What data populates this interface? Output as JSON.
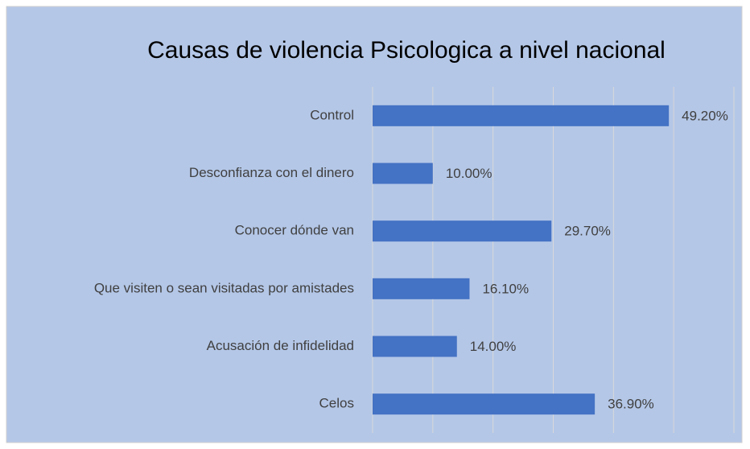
{
  "chart_data": {
    "type": "hbar",
    "title": "Causas de violencia Psicologica a nivel nacional",
    "categories": [
      "Control",
      "Desconfianza con el dinero",
      "Conocer dónde van",
      "Que visiten o sean visitadas por amistades",
      "Acusación de infidelidad",
      "Celos"
    ],
    "values": [
      49.2,
      10.0,
      29.7,
      16.1,
      14.0,
      36.9
    ],
    "value_labels": [
      "49.20%",
      "10.00%",
      "29.70%",
      "16.10%",
      "14.00%",
      "36.90%"
    ],
    "color": "#4472c4",
    "xlim": [
      0,
      60
    ],
    "xticks": [
      0,
      10,
      20,
      30,
      40,
      50,
      60
    ],
    "grid": true
  }
}
